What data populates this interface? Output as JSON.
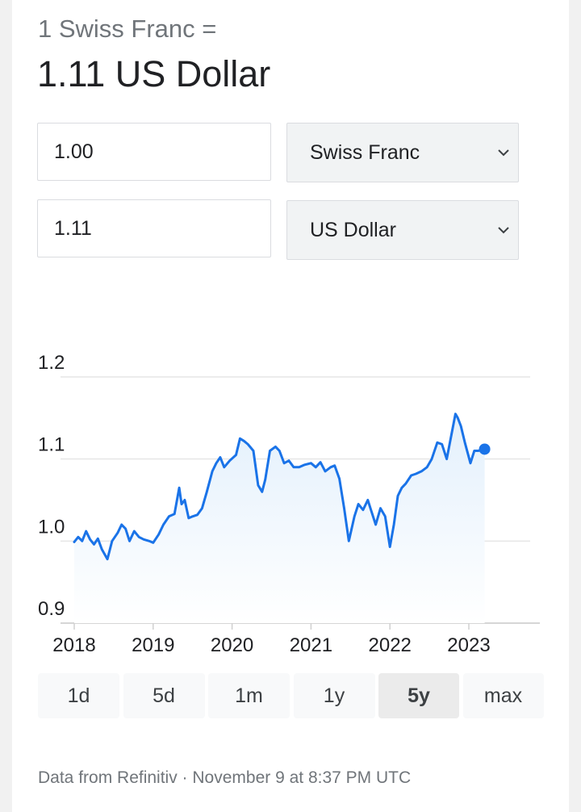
{
  "header": {
    "from_text": "1 Swiss Franc =",
    "result_text": "1.11 US Dollar"
  },
  "converter": {
    "from_amount": "1.00",
    "from_currency": "Swiss Franc",
    "to_amount": "1.11",
    "to_currency": "US Dollar"
  },
  "chart_data": {
    "type": "line",
    "y_ticks": [
      "1.2",
      "1.1",
      "1.0",
      "0.9"
    ],
    "x_ticks": [
      "2018",
      "2019",
      "2020",
      "2021",
      "2022",
      "2023"
    ],
    "ylim": [
      0.9,
      1.2
    ],
    "xlim": [
      2018.0,
      2023.9
    ],
    "grid": true,
    "series": [
      {
        "color": "#1a73e8",
        "x": [
          2018.0,
          2018.05,
          2018.1,
          2018.15,
          2018.2,
          2018.25,
          2018.3,
          2018.35,
          2018.42,
          2018.48,
          2018.55,
          2018.6,
          2018.65,
          2018.7,
          2018.76,
          2018.82,
          2018.88,
          2018.95,
          2019.0,
          2019.07,
          2019.13,
          2019.2,
          2019.27,
          2019.33,
          2019.36,
          2019.4,
          2019.45,
          2019.5,
          2019.56,
          2019.62,
          2019.68,
          2019.75,
          2019.8,
          2019.85,
          2019.9,
          2019.97,
          2020.05,
          2020.1,
          2020.15,
          2020.2,
          2020.27,
          2020.33,
          2020.38,
          2020.42,
          2020.48,
          2020.55,
          2020.6,
          2020.66,
          2020.72,
          2020.78,
          2020.85,
          2020.92,
          2021.0,
          2021.06,
          2021.12,
          2021.18,
          2021.25,
          2021.3,
          2021.36,
          2021.42,
          2021.48,
          2021.55,
          2021.6,
          2021.66,
          2021.72,
          2021.77,
          2021.82,
          2021.88,
          2021.94,
          2022.0,
          2022.05,
          2022.1,
          2022.15,
          2022.2,
          2022.27,
          2022.33,
          2022.4,
          2022.47,
          2022.53,
          2022.6,
          2022.66,
          2022.72,
          2022.78,
          2022.83,
          2022.86,
          2022.9,
          2022.95,
          2023.02,
          2023.07,
          2023.12,
          2023.2
        ],
        "y": [
          0.999,
          1.005,
          1.0,
          1.012,
          1.002,
          0.996,
          1.003,
          0.99,
          0.978,
          1.0,
          1.01,
          1.02,
          1.015,
          1.0,
          1.012,
          1.005,
          1.002,
          1.0,
          0.998,
          1.008,
          1.02,
          1.03,
          1.033,
          1.065,
          1.045,
          1.05,
          1.028,
          1.03,
          1.032,
          1.04,
          1.06,
          1.085,
          1.095,
          1.102,
          1.09,
          1.098,
          1.105,
          1.125,
          1.122,
          1.118,
          1.11,
          1.068,
          1.06,
          1.075,
          1.11,
          1.115,
          1.11,
          1.095,
          1.098,
          1.09,
          1.09,
          1.093,
          1.095,
          1.09,
          1.096,
          1.085,
          1.09,
          1.092,
          1.076,
          1.04,
          1.0,
          1.03,
          1.045,
          1.038,
          1.05,
          1.035,
          1.02,
          1.04,
          1.03,
          0.993,
          1.02,
          1.055,
          1.065,
          1.07,
          1.08,
          1.082,
          1.085,
          1.09,
          1.1,
          1.12,
          1.118,
          1.1,
          1.13,
          1.155,
          1.15,
          1.14,
          1.12,
          1.095,
          1.11,
          1.11,
          1.112
        ]
      }
    ]
  },
  "range_tabs": [
    "1d",
    "5d",
    "1m",
    "1y",
    "5y",
    "max"
  ],
  "active_range": "5y",
  "footer": {
    "text": "Data from Refinitiv · November 9 at 8:37 PM UTC"
  }
}
